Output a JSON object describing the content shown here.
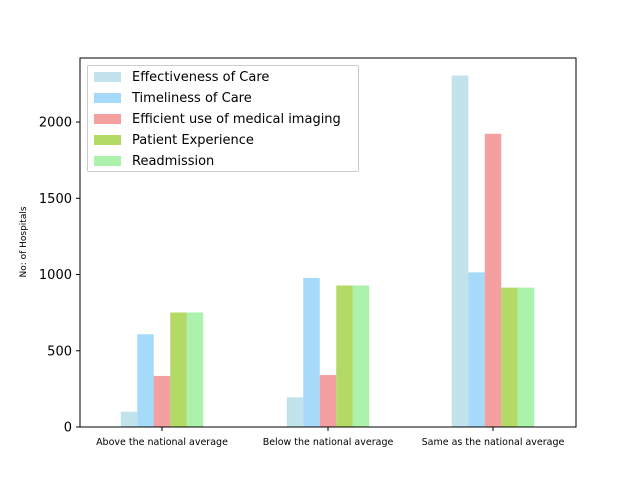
{
  "chart_data": {
    "type": "bar",
    "title": "",
    "xlabel": "",
    "ylabel": "No: of Hospitals",
    "categories": [
      "Above the national average",
      "Below the national average",
      "Same as the national average"
    ],
    "ylim": [
      0,
      2420
    ],
    "yticks": [
      0,
      500,
      1000,
      1500,
      2000
    ],
    "grid": false,
    "legend_position": "upper-left",
    "series": [
      {
        "name": "Effectiveness of Care",
        "color": "#add8e6",
        "values": [
          100,
          195,
          2305
        ]
      },
      {
        "name": "Timeliness of Care",
        "color": "#87cefa",
        "values": [
          608,
          977,
          1014
        ]
      },
      {
        "name": "Efficient use of medical imaging",
        "color": "#f08080",
        "values": [
          335,
          341,
          1923
        ]
      },
      {
        "name": "Patient Experience",
        "color": "#9acd32",
        "values": [
          751,
          928,
          914
        ]
      },
      {
        "name": "Readmission",
        "color": "#90ee90",
        "values": [
          751,
          928,
          914
        ]
      }
    ]
  }
}
